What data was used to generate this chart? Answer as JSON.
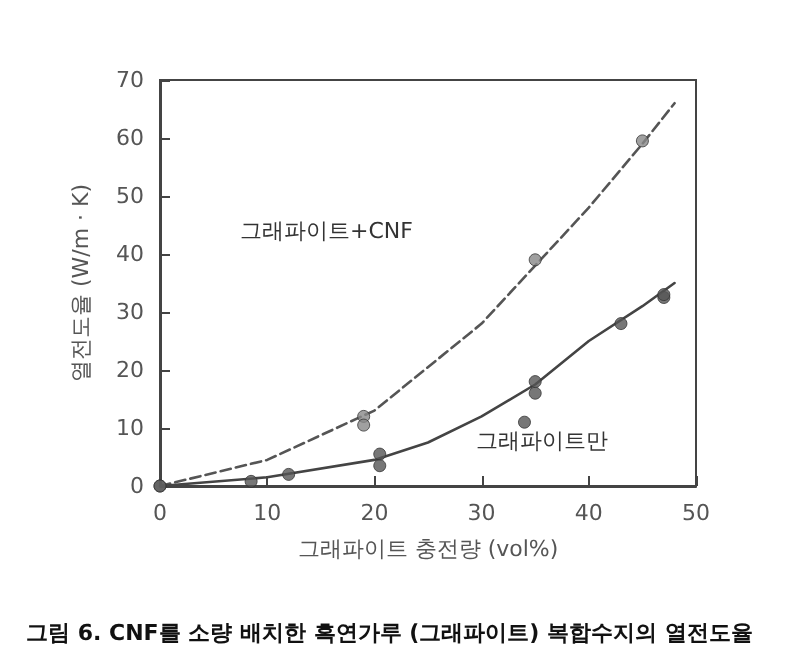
{
  "chart_data": {
    "type": "scatter",
    "title": "그림 6. CNF를 소량 배치한 흑연가루 (그래파이트) 복합수지의 열전도율",
    "xlabel": "그래파이트 충전량 (vol%)",
    "ylabel": "열전도율 (W/m · K)",
    "series": [
      {
        "type": "line",
        "color": "#555555",
        "line_style": "dashed",
        "marker": "none",
        "x": [
          0,
          10,
          20,
          30,
          35,
          40,
          45,
          48
        ],
        "values": [
          0,
          4.5,
          13,
          28,
          38,
          48,
          59,
          66
        ]
      },
      {
        "type": "line",
        "color": "#444444",
        "line_style": "solid",
        "marker": "none",
        "x": [
          0,
          10,
          20,
          25,
          30,
          35,
          40,
          45,
          48
        ],
        "values": [
          0,
          1.5,
          4.5,
          7.5,
          12,
          17.5,
          25,
          31,
          35
        ]
      },
      {
        "color": "#888888",
        "marker": "circle",
        "x": [
          0,
          19,
          19,
          35,
          45
        ],
        "values": [
          0,
          12,
          10.5,
          39,
          59.5
        ]
      },
      {
        "color": "#555555",
        "marker": "circle",
        "x": [
          0,
          8.5,
          12,
          20.5,
          20.5,
          34,
          35,
          35,
          43,
          47,
          47
        ],
        "values": [
          0,
          0.8,
          2,
          5.5,
          3.5,
          11,
          18,
          16,
          28,
          32.5,
          33
        ]
      }
    ],
    "annotations": [
      "그래파이트+CNF",
      "그래파이트만"
    ],
    "xlim": [
      0,
      50
    ],
    "xticks": [
      0,
      10,
      20,
      30,
      40,
      50
    ],
    "ylim": [
      0,
      70
    ],
    "yticks": [
      0,
      10,
      20,
      30,
      40,
      50,
      60,
      70
    ],
    "grid": false
  }
}
